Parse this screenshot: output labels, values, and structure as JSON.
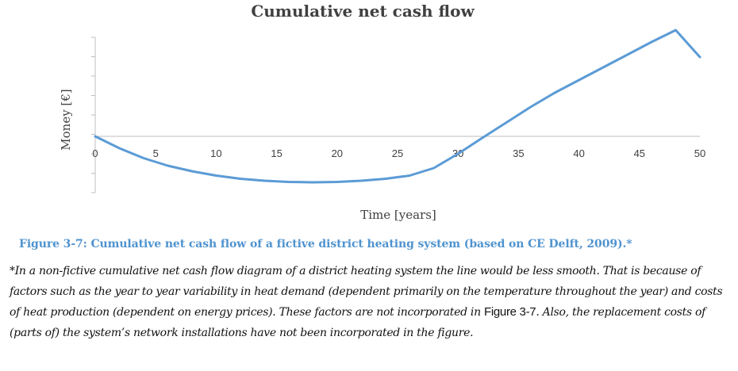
{
  "chart_data": {
    "type": "line",
    "title": "Cumulative net cash flow",
    "xlabel": "Time [years]",
    "ylabel": "Money [€]",
    "x_ticks": [
      "0",
      "5",
      "10",
      "15",
      "20",
      "25",
      "30",
      "35",
      "40",
      "45",
      "50"
    ],
    "xlim": [
      0,
      50
    ],
    "ylim": [
      -1.4,
      2.5
    ],
    "grid": false,
    "series": [
      {
        "color": "#5b9bd5",
        "x": [
          0,
          2,
          4,
          6,
          8,
          10,
          12,
          14,
          16,
          18,
          20,
          22,
          24,
          26,
          28,
          30,
          32,
          34,
          36,
          38,
          40,
          42,
          44,
          46,
          48,
          50
        ],
        "y": [
          0,
          -0.3,
          -0.55,
          -0.74,
          -0.88,
          -0.99,
          -1.07,
          -1.12,
          -1.15,
          -1.16,
          -1.15,
          -1.12,
          -1.07,
          -0.99,
          -0.8,
          -0.44,
          -0.04,
          0.35,
          0.74,
          1.1,
          1.42,
          1.74,
          2.06,
          2.38,
          2.68,
          2.0
        ]
      }
    ]
  },
  "caption": "Figure 3-7: Cumulative net cash flow of a fictive district heating system (based on CE Delft, 2009).*",
  "note": {
    "part1": "*In a non-fictive cumulative net cash flow diagram of a district heating system the line would be less smooth. That is because of factors such as the year to year variability in heat demand (dependent primarily on the temperature throughout the year) and costs of heat production (dependent on energy prices). These factors are not incorporated in ",
    "ref": "Figure 3-7",
    "part2": ". Also, the replacement costs of (parts of) the system’s network installations have not been incorporated in the figure."
  }
}
